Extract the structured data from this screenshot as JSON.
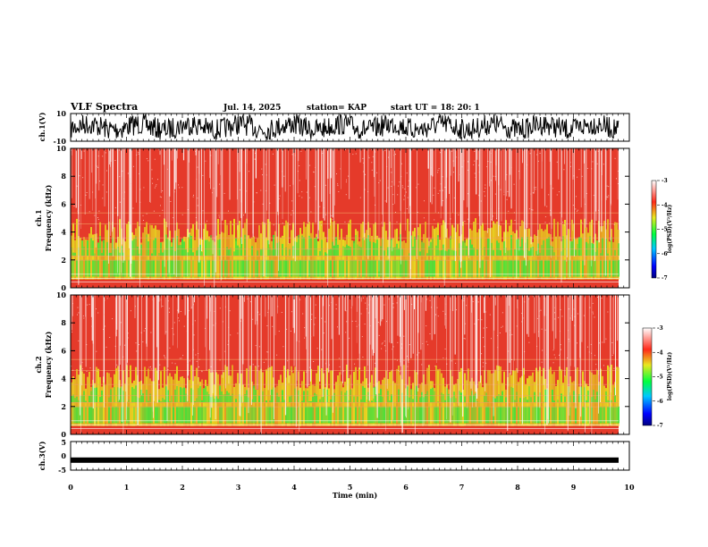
{
  "header": {
    "title": "VLF Spectra",
    "date": "Jul. 14, 2025",
    "station": "station= KAP",
    "start": "start UT =  18: 20: 1"
  },
  "colors": {
    "spectrogram_bg": "#e53a2a",
    "band_yellow": "#e8e020",
    "band_green": "#3ce23c",
    "trace": "#000000"
  },
  "chart_data": [
    {
      "type": "line",
      "name": "ch1-waveform",
      "ylabel": "ch.1(V)",
      "ytick_labels": [
        "10",
        "-10"
      ],
      "ylim": [
        -10,
        10
      ],
      "xlim": [
        0,
        10
      ]
    },
    {
      "type": "heatmap",
      "name": "ch1-spectrogram",
      "ylabel_top": "ch.1",
      "ylabel_bottom": "Frequency (kHz)",
      "ytick_labels": [
        "0",
        "2",
        "4",
        "6",
        "8",
        "10"
      ],
      "ylim": [
        0,
        10
      ],
      "xlim": [
        0,
        10
      ],
      "colorbar": {
        "label": "log(PSD)(V²/Hz)",
        "ticks": [
          "-3",
          "-4",
          "-5",
          "-6",
          "-7"
        ],
        "range": [
          -7,
          -3
        ]
      }
    },
    {
      "type": "heatmap",
      "name": "ch2-spectrogram",
      "ylabel_top": "ch.2",
      "ylabel_bottom": "Frequency (kHz)",
      "ytick_labels": [
        "0",
        "2",
        "4",
        "6",
        "8",
        "10"
      ],
      "ylim": [
        0,
        10
      ],
      "xlim": [
        0,
        10
      ],
      "colorbar": {
        "label": "log(PSD)(V²/Hz)",
        "ticks": [
          "-3",
          "-4",
          "-5",
          "-6",
          "-7"
        ],
        "range": [
          -7,
          -3
        ]
      }
    },
    {
      "type": "line",
      "name": "ch3-waveform",
      "ylabel": "ch.3(V)",
      "ytick_labels": [
        "5",
        "0",
        "-5"
      ],
      "ylim": [
        -5,
        5
      ],
      "xlim": [
        0,
        10
      ],
      "level": -1.5
    }
  ],
  "xaxis": {
    "label": "Time (min)",
    "tick_labels": [
      "0",
      "1",
      "2",
      "3",
      "4",
      "5",
      "6",
      "7",
      "8",
      "9",
      "10"
    ]
  }
}
